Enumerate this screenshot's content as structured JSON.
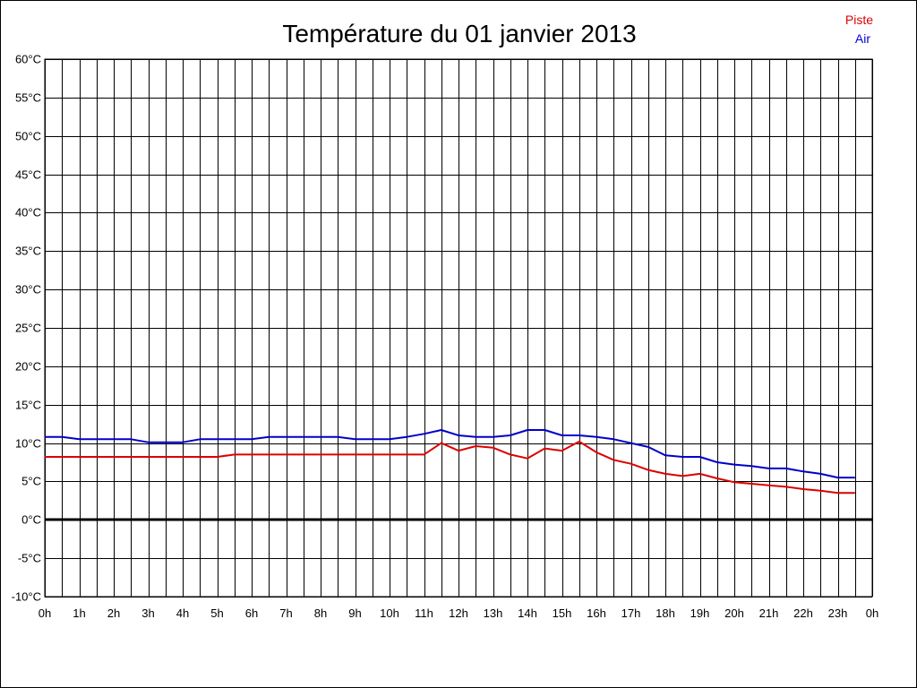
{
  "chart_data": {
    "type": "line",
    "title": "Température du 01 janvier 2013",
    "xlabel": "",
    "ylabel": "",
    "xlim": [
      0,
      24
    ],
    "ylim": [
      -10,
      60
    ],
    "grid": true,
    "legend_position": "top-right",
    "y_ticks": [
      {
        "value": 60,
        "label": "60°C"
      },
      {
        "value": 55,
        "label": "55°C"
      },
      {
        "value": 50,
        "label": "50°C"
      },
      {
        "value": 45,
        "label": "45°C"
      },
      {
        "value": 40,
        "label": "40°C"
      },
      {
        "value": 35,
        "label": "35°C"
      },
      {
        "value": 30,
        "label": "30°C"
      },
      {
        "value": 25,
        "label": "25°C"
      },
      {
        "value": 20,
        "label": "20°C"
      },
      {
        "value": 15,
        "label": "15°C"
      },
      {
        "value": 10,
        "label": "10°C"
      },
      {
        "value": 5,
        "label": "5°C"
      },
      {
        "value": 0,
        "label": "0°C"
      },
      {
        "value": -5,
        "label": "-5°C"
      },
      {
        "value": -10,
        "label": "-10°C"
      }
    ],
    "x_ticks": [
      {
        "value": 0,
        "label": "0h"
      },
      {
        "value": 1,
        "label": "1h"
      },
      {
        "value": 2,
        "label": "2h"
      },
      {
        "value": 3,
        "label": "3h"
      },
      {
        "value": 4,
        "label": "4h"
      },
      {
        "value": 5,
        "label": "5h"
      },
      {
        "value": 6,
        "label": "6h"
      },
      {
        "value": 7,
        "label": "7h"
      },
      {
        "value": 8,
        "label": "8h"
      },
      {
        "value": 9,
        "label": "9h"
      },
      {
        "value": 10,
        "label": "10h"
      },
      {
        "value": 11,
        "label": "11h"
      },
      {
        "value": 12,
        "label": "12h"
      },
      {
        "value": 13,
        "label": "13h"
      },
      {
        "value": 14,
        "label": "14h"
      },
      {
        "value": 15,
        "label": "15h"
      },
      {
        "value": 16,
        "label": "16h"
      },
      {
        "value": 17,
        "label": "17h"
      },
      {
        "value": 18,
        "label": "18h"
      },
      {
        "value": 19,
        "label": "19h"
      },
      {
        "value": 20,
        "label": "20h"
      },
      {
        "value": 21,
        "label": "21h"
      },
      {
        "value": 22,
        "label": "22h"
      },
      {
        "value": 23,
        "label": "23h"
      },
      {
        "value": 24,
        "label": "0h"
      }
    ],
    "series": [
      {
        "name": "Piste",
        "color": "#dd0000",
        "x": [
          0,
          0.5,
          1,
          1.5,
          2,
          2.5,
          3,
          3.5,
          4,
          4.5,
          5,
          5.5,
          6,
          6.5,
          7,
          7.5,
          8,
          8.5,
          9,
          9.5,
          10,
          10.5,
          11,
          11.5,
          12,
          12.5,
          13,
          13.5,
          14,
          14.5,
          15,
          15.5,
          16,
          16.5,
          17,
          17.5,
          18,
          18.5,
          19,
          19.5,
          20,
          20.5,
          21,
          21.5,
          22,
          22.5,
          23,
          23.5
        ],
        "y": [
          8.2,
          8.2,
          8.2,
          8.2,
          8.2,
          8.2,
          8.2,
          8.2,
          8.2,
          8.2,
          8.2,
          8.5,
          8.5,
          8.5,
          8.5,
          8.5,
          8.5,
          8.5,
          8.5,
          8.5,
          8.5,
          8.5,
          8.5,
          10.0,
          9.0,
          9.6,
          9.4,
          8.5,
          8.0,
          9.3,
          9.0,
          10.2,
          8.8,
          7.8,
          7.3,
          6.5,
          6.0,
          5.7,
          6.0,
          5.4,
          4.9,
          4.7,
          4.5,
          4.3,
          4.0,
          3.8,
          3.5,
          3.5
        ]
      },
      {
        "name": "Air",
        "color": "#0000cc",
        "x": [
          0,
          0.5,
          1,
          1.5,
          2,
          2.5,
          3,
          3.5,
          4,
          4.5,
          5,
          5.5,
          6,
          6.5,
          7,
          7.5,
          8,
          8.5,
          9,
          9.5,
          10,
          10.5,
          11,
          11.5,
          12,
          12.5,
          13,
          13.5,
          14,
          14.5,
          15,
          15.5,
          16,
          16.5,
          17,
          17.5,
          18,
          18.5,
          19,
          19.5,
          20,
          20.5,
          21,
          21.5,
          22,
          22.5,
          23,
          23.5
        ],
        "y": [
          10.8,
          10.8,
          10.5,
          10.5,
          10.5,
          10.5,
          10.1,
          10.1,
          10.1,
          10.5,
          10.5,
          10.5,
          10.5,
          10.8,
          10.8,
          10.8,
          10.8,
          10.8,
          10.5,
          10.5,
          10.5,
          10.8,
          11.2,
          11.7,
          11.0,
          10.8,
          10.8,
          11.0,
          11.7,
          11.7,
          11.0,
          11.0,
          10.8,
          10.5,
          10.0,
          9.5,
          8.4,
          8.2,
          8.2,
          7.5,
          7.2,
          7.0,
          6.7,
          6.7,
          6.3,
          6.0,
          5.5,
          5.5
        ]
      }
    ]
  }
}
